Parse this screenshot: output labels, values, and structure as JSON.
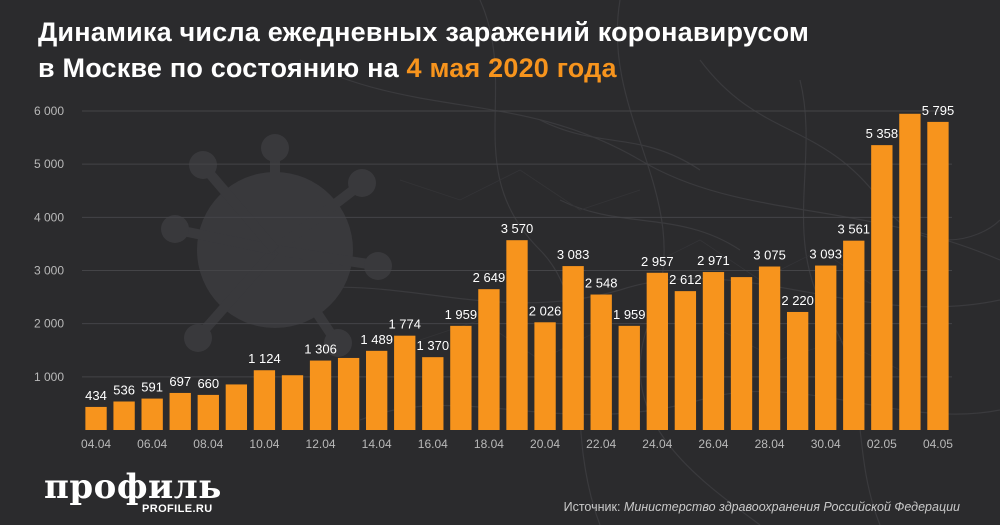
{
  "header": {
    "title_line1": "Динамика числа ежедневных заражений коронавирусом",
    "title_line2_prefix": "в Москве по состоянию на ",
    "title_line2_accent": "4 мая 2020 года"
  },
  "footer": {
    "logo": "профиль",
    "logo_sub": "PROFILE.RU",
    "source_label": "Источник: ",
    "source_text": "Министерство здравоохранения Российской Федерации"
  },
  "colors": {
    "bar": "#f7941d",
    "background": "#2b2b2d",
    "accent": "#f7941d",
    "text": "#ffffff",
    "axis_text": "#b9b9b9"
  },
  "chart_data": {
    "type": "bar",
    "title": "Динамика числа ежедневных заражений коронавирусом в Москве по состоянию на 4 мая 2020 года",
    "xlabel": "",
    "ylabel": "",
    "ylim": [
      0,
      6000
    ],
    "yticks": [
      1000,
      2000,
      3000,
      4000,
      5000,
      6000
    ],
    "ytick_labels": [
      "1 000",
      "2 000",
      "3 000",
      "4 000",
      "5 000",
      "6 000"
    ],
    "grid": true,
    "legend": "none",
    "categories": [
      "04.04",
      "05.04",
      "06.04",
      "07.04",
      "08.04",
      "09.04",
      "10.04",
      "11.04",
      "12.04",
      "13.04",
      "14.04",
      "15.04",
      "16.04",
      "17.04",
      "18.04",
      "19.04",
      "20.04",
      "21.04",
      "22.04",
      "23.04",
      "24.04",
      "25.04",
      "26.04",
      "27.04",
      "28.04",
      "29.04",
      "30.04",
      "01.05",
      "02.05",
      "03.05",
      "04.05"
    ],
    "xtick_labels": [
      "04.04",
      "",
      "06.04",
      "",
      "08.04",
      "",
      "10.04",
      "",
      "12.04",
      "",
      "14.04",
      "",
      "16.04",
      "",
      "18.04",
      "",
      "20.04",
      "",
      "22.04",
      "",
      "24.04",
      "",
      "26.04",
      "",
      "28.04",
      "",
      "30.04",
      "",
      "02.05",
      "",
      "04.05"
    ],
    "values": [
      434,
      536,
      591,
      697,
      660,
      857,
      1124,
      1030,
      1306,
      1355,
      1489,
      1774,
      1370,
      1959,
      2649,
      3570,
      2026,
      3083,
      2548,
      1959,
      2957,
      2612,
      2971,
      2876,
      3075,
      2220,
      3093,
      3561,
      5358,
      5948,
      5795
    ],
    "data_labels": [
      "434",
      "536",
      "591",
      "697",
      "660",
      "",
      "1 124",
      "",
      "1 306",
      "",
      "1 489",
      "1 774",
      "1 370",
      "1 959",
      "2 649",
      "3 570",
      "2 026",
      "3 083",
      "2 548",
      "1 959",
      "2 957",
      "2 612",
      "2 971",
      "",
      "3 075",
      "2 220",
      "3 093",
      "3 561",
      "5 358",
      "",
      "5 795"
    ]
  }
}
